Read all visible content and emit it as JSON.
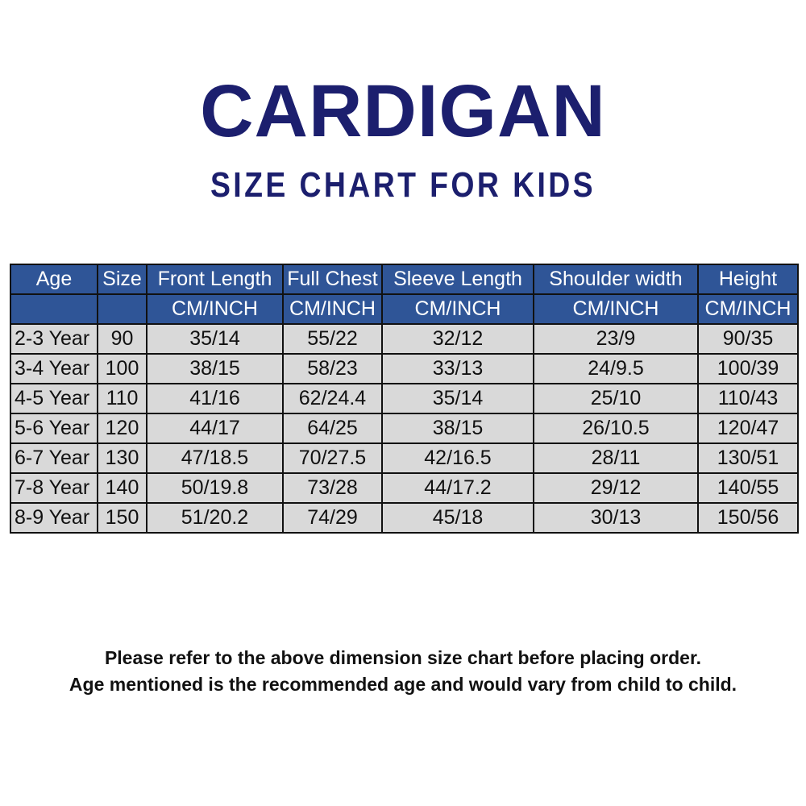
{
  "title": "CARDIGAN",
  "subtitle": "SIZE CHART FOR KIDS",
  "colors": {
    "title": "#1c1f6e",
    "header_bg": "#2f5597",
    "cell_bg": "#d9d9d9"
  },
  "table": {
    "headers": [
      "Age",
      "Size",
      "Front Length",
      "Full Chest",
      "Sleeve Length",
      "Shoulder width",
      "Height"
    ],
    "units": [
      "",
      "",
      "CM/INCH",
      "CM/INCH",
      "CM/INCH",
      "CM/INCH",
      "CM/INCH"
    ],
    "rows": [
      [
        "2-3 Year",
        "90",
        "35/14",
        "55/22",
        "32/12",
        "23/9",
        "90/35"
      ],
      [
        "3-4 Year",
        "100",
        "38/15",
        "58/23",
        "33/13",
        "24/9.5",
        "100/39"
      ],
      [
        "4-5 Year",
        "110",
        "41/16",
        "62/24.4",
        "35/14",
        "25/10",
        "110/43"
      ],
      [
        "5-6 Year",
        "120",
        "44/17",
        "64/25",
        "38/15",
        "26/10.5",
        "120/47"
      ],
      [
        "6-7 Year",
        "130",
        "47/18.5",
        "70/27.5",
        "42/16.5",
        "28/11",
        "130/51"
      ],
      [
        "7-8 Year",
        "140",
        "50/19.8",
        "73/28",
        "44/17.2",
        "29/12",
        "140/55"
      ],
      [
        "8-9 Year",
        "150",
        "51/20.2",
        "74/29",
        "45/18",
        "30/13",
        "150/56"
      ]
    ]
  },
  "notes": [
    "Please refer to the above dimension size chart before placing order.",
    "Age mentioned is the recommended age and would vary from child to child."
  ]
}
